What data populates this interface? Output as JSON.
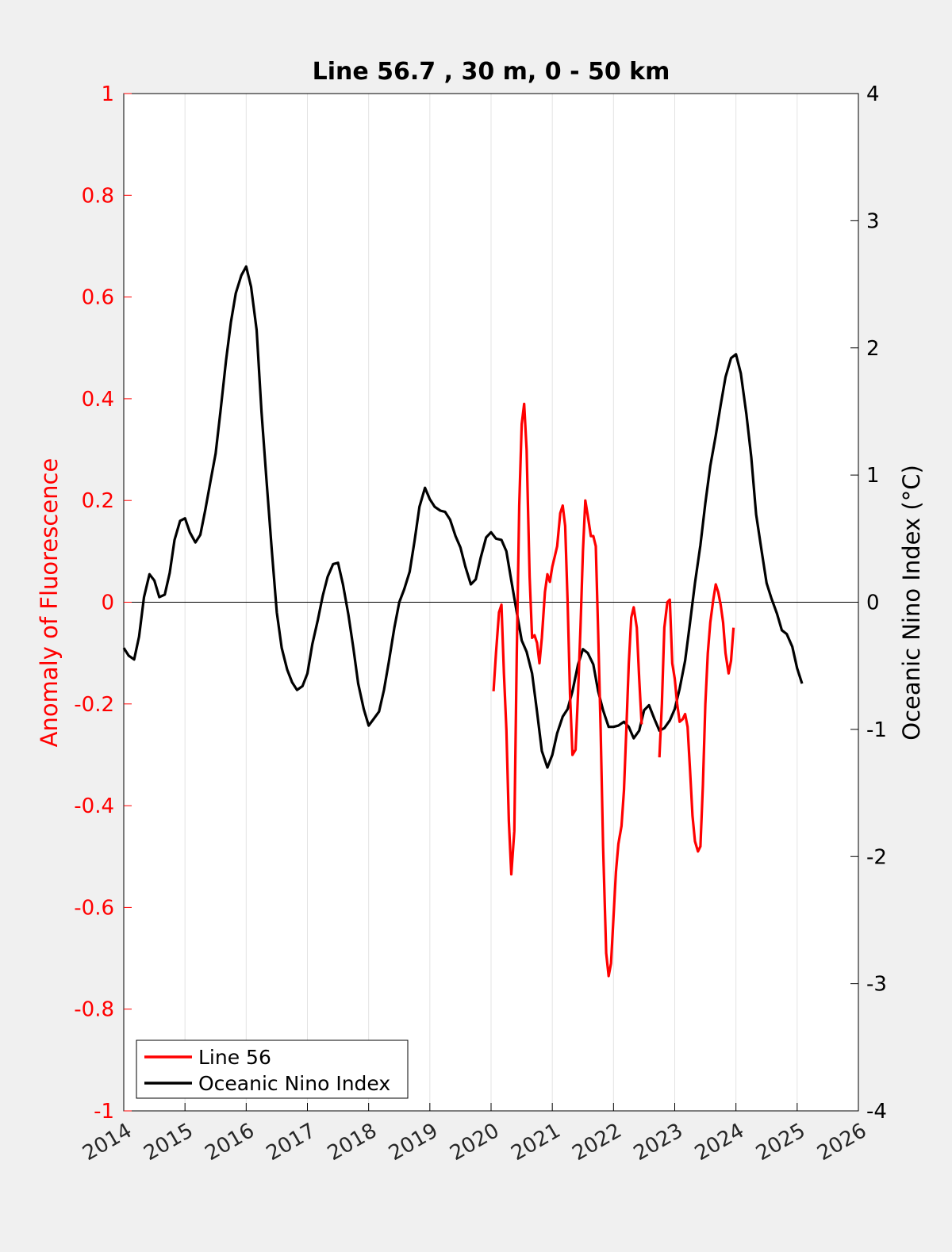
{
  "chart_data": {
    "type": "line",
    "title": "Line 56.7 , 30 m, 0 - 50 km",
    "xlabel": "",
    "ylabel_left": "Anomaly of Fluorescence",
    "ylabel_right": "Oceanic Nino Index (°C)",
    "xlim": [
      2014,
      2026
    ],
    "ylim_left": [
      -1,
      1
    ],
    "ylim_right": [
      -4,
      4
    ],
    "x_ticks": [
      "2014",
      "2015",
      "2016",
      "2017",
      "2018",
      "2019",
      "2020",
      "2021",
      "2022",
      "2023",
      "2024",
      "2025",
      "2026"
    ],
    "y_ticks_left": [
      "1",
      "0.8",
      "0.6",
      "0.4",
      "0.2",
      "0",
      "-0.2",
      "-0.4",
      "-0.6",
      "-0.8",
      "-1"
    ],
    "y_ticks_right": [
      "4",
      "3",
      "2",
      "1",
      "0",
      "-1",
      "-2",
      "-3",
      "-4"
    ],
    "grid": "vertical",
    "zero_line": true,
    "legend_position": "bottom-left",
    "colors": {
      "line56": "#ff0000",
      "oni": "#000000",
      "left_axis": "#ff0000",
      "right_axis": "#000000"
    },
    "series": [
      {
        "name": "Line 56",
        "axis": "left",
        "color": "#ff0000",
        "segments": [
          [
            [
              2020.04,
              -0.175
            ],
            [
              2020.08,
              -0.1
            ],
            [
              2020.13,
              -0.02
            ],
            [
              2020.17,
              -0.005
            ],
            [
              2020.21,
              -0.14
            ],
            [
              2020.25,
              -0.25
            ],
            [
              2020.29,
              -0.43
            ],
            [
              2020.33,
              -0.535
            ],
            [
              2020.38,
              -0.45
            ],
            [
              2020.42,
              -0.1
            ],
            [
              2020.46,
              0.19
            ],
            [
              2020.5,
              0.35
            ],
            [
              2020.54,
              0.39
            ],
            [
              2020.58,
              0.3
            ],
            [
              2020.63,
              0.05
            ],
            [
              2020.67,
              -0.07
            ],
            [
              2020.71,
              -0.065
            ],
            [
              2020.75,
              -0.08
            ],
            [
              2020.79,
              -0.12
            ],
            [
              2020.83,
              -0.07
            ],
            [
              2020.88,
              0.02
            ],
            [
              2020.92,
              0.055
            ],
            [
              2020.96,
              0.04
            ],
            [
              2021.0,
              0.07
            ],
            [
              2021.04,
              0.09
            ],
            [
              2021.08,
              0.11
            ],
            [
              2021.13,
              0.175
            ],
            [
              2021.17,
              0.19
            ],
            [
              2021.21,
              0.15
            ],
            [
              2021.25,
              0.0
            ],
            [
              2021.29,
              -0.18
            ],
            [
              2021.33,
              -0.3
            ],
            [
              2021.38,
              -0.29
            ],
            [
              2021.42,
              -0.18
            ],
            [
              2021.46,
              -0.05
            ],
            [
              2021.5,
              0.1
            ],
            [
              2021.54,
              0.2
            ],
            [
              2021.58,
              0.17
            ],
            [
              2021.63,
              0.13
            ],
            [
              2021.67,
              0.13
            ],
            [
              2021.71,
              0.11
            ],
            [
              2021.75,
              -0.06
            ],
            [
              2021.79,
              -0.25
            ],
            [
              2021.83,
              -0.48
            ],
            [
              2021.88,
              -0.69
            ],
            [
              2021.92,
              -0.735
            ],
            [
              2021.96,
              -0.71
            ],
            [
              2022.0,
              -0.62
            ],
            [
              2022.04,
              -0.53
            ],
            [
              2022.08,
              -0.475
            ],
            [
              2022.13,
              -0.44
            ],
            [
              2022.17,
              -0.37
            ],
            [
              2022.21,
              -0.25
            ],
            [
              2022.25,
              -0.12
            ],
            [
              2022.29,
              -0.03
            ],
            [
              2022.33,
              -0.01
            ],
            [
              2022.38,
              -0.05
            ],
            [
              2022.42,
              -0.15
            ],
            [
              2022.46,
              -0.24
            ]
          ],
          [
            [
              2022.75,
              -0.305
            ],
            [
              2022.79,
              -0.2
            ],
            [
              2022.83,
              -0.05
            ],
            [
              2022.88,
              0.0
            ],
            [
              2022.92,
              0.005
            ],
            [
              2022.96,
              -0.12
            ],
            [
              2023.0,
              -0.15
            ],
            [
              2023.04,
              -0.2
            ],
            [
              2023.08,
              -0.235
            ],
            [
              2023.13,
              -0.23
            ],
            [
              2023.17,
              -0.22
            ],
            [
              2023.21,
              -0.245
            ],
            [
              2023.25,
              -0.33
            ],
            [
              2023.29,
              -0.42
            ],
            [
              2023.33,
              -0.47
            ],
            [
              2023.38,
              -0.49
            ],
            [
              2023.42,
              -0.48
            ],
            [
              2023.46,
              -0.36
            ],
            [
              2023.5,
              -0.2
            ],
            [
              2023.54,
              -0.1
            ],
            [
              2023.58,
              -0.04
            ],
            [
              2023.63,
              0.005
            ],
            [
              2023.67,
              0.035
            ],
            [
              2023.71,
              0.02
            ],
            [
              2023.75,
              -0.005
            ],
            [
              2023.79,
              -0.04
            ],
            [
              2023.83,
              -0.1
            ],
            [
              2023.88,
              -0.14
            ],
            [
              2023.92,
              -0.115
            ],
            [
              2023.96,
              -0.05
            ]
          ]
        ]
      },
      {
        "name": "Oceanic Nino Index",
        "axis": "right",
        "color": "#000000",
        "points": [
          [
            2014.0,
            -0.36
          ],
          [
            2014.08,
            -0.42
          ],
          [
            2014.17,
            -0.45
          ],
          [
            2014.25,
            -0.27
          ],
          [
            2014.33,
            0.04
          ],
          [
            2014.42,
            0.22
          ],
          [
            2014.5,
            0.17
          ],
          [
            2014.58,
            0.04
          ],
          [
            2014.67,
            0.06
          ],
          [
            2014.75,
            0.23
          ],
          [
            2014.83,
            0.49
          ],
          [
            2014.92,
            0.64
          ],
          [
            2015.0,
            0.66
          ],
          [
            2015.08,
            0.55
          ],
          [
            2015.17,
            0.47
          ],
          [
            2015.25,
            0.53
          ],
          [
            2015.33,
            0.72
          ],
          [
            2015.42,
            0.96
          ],
          [
            2015.5,
            1.17
          ],
          [
            2015.58,
            1.5
          ],
          [
            2015.67,
            1.9
          ],
          [
            2015.75,
            2.2
          ],
          [
            2015.83,
            2.43
          ],
          [
            2015.92,
            2.57
          ],
          [
            2016.0,
            2.64
          ],
          [
            2016.08,
            2.48
          ],
          [
            2016.17,
            2.14
          ],
          [
            2016.25,
            1.5
          ],
          [
            2016.33,
            0.97
          ],
          [
            2016.42,
            0.4
          ],
          [
            2016.5,
            -0.08
          ],
          [
            2016.58,
            -0.36
          ],
          [
            2016.67,
            -0.53
          ],
          [
            2016.75,
            -0.63
          ],
          [
            2016.83,
            -0.69
          ],
          [
            2016.92,
            -0.66
          ],
          [
            2017.0,
            -0.56
          ],
          [
            2017.08,
            -0.33
          ],
          [
            2017.17,
            -0.14
          ],
          [
            2017.25,
            0.05
          ],
          [
            2017.33,
            0.2
          ],
          [
            2017.42,
            0.3
          ],
          [
            2017.5,
            0.31
          ],
          [
            2017.58,
            0.14
          ],
          [
            2017.67,
            -0.1
          ],
          [
            2017.75,
            -0.36
          ],
          [
            2017.83,
            -0.64
          ],
          [
            2017.92,
            -0.84
          ],
          [
            2018.0,
            -0.97
          ],
          [
            2018.08,
            -0.92
          ],
          [
            2018.17,
            -0.86
          ],
          [
            2018.25,
            -0.69
          ],
          [
            2018.33,
            -0.47
          ],
          [
            2018.42,
            -0.2
          ],
          [
            2018.5,
            0.0
          ],
          [
            2018.58,
            0.1
          ],
          [
            2018.67,
            0.24
          ],
          [
            2018.75,
            0.48
          ],
          [
            2018.83,
            0.75
          ],
          [
            2018.92,
            0.9
          ],
          [
            2019.0,
            0.81
          ],
          [
            2019.08,
            0.75
          ],
          [
            2019.17,
            0.72
          ],
          [
            2019.25,
            0.71
          ],
          [
            2019.33,
            0.65
          ],
          [
            2019.42,
            0.52
          ],
          [
            2019.5,
            0.43
          ],
          [
            2019.58,
            0.28
          ],
          [
            2019.67,
            0.14
          ],
          [
            2019.75,
            0.18
          ],
          [
            2019.83,
            0.35
          ],
          [
            2019.92,
            0.51
          ],
          [
            2020.0,
            0.55
          ],
          [
            2020.08,
            0.5
          ],
          [
            2020.17,
            0.49
          ],
          [
            2020.25,
            0.4
          ],
          [
            2020.33,
            0.17
          ],
          [
            2020.42,
            -0.08
          ],
          [
            2020.5,
            -0.3
          ],
          [
            2020.58,
            -0.39
          ],
          [
            2020.67,
            -0.56
          ],
          [
            2020.75,
            -0.86
          ],
          [
            2020.83,
            -1.17
          ],
          [
            2020.92,
            -1.3
          ],
          [
            2021.0,
            -1.2
          ],
          [
            2021.08,
            -1.03
          ],
          [
            2021.17,
            -0.9
          ],
          [
            2021.25,
            -0.84
          ],
          [
            2021.33,
            -0.7
          ],
          [
            2021.42,
            -0.49
          ],
          [
            2021.5,
            -0.37
          ],
          [
            2021.58,
            -0.4
          ],
          [
            2021.67,
            -0.49
          ],
          [
            2021.75,
            -0.7
          ],
          [
            2021.83,
            -0.85
          ],
          [
            2021.92,
            -0.98
          ],
          [
            2022.0,
            -0.98
          ],
          [
            2022.08,
            -0.97
          ],
          [
            2022.17,
            -0.94
          ],
          [
            2022.25,
            -0.98
          ],
          [
            2022.33,
            -1.07
          ],
          [
            2022.42,
            -1.01
          ],
          [
            2022.5,
            -0.85
          ],
          [
            2022.58,
            -0.81
          ],
          [
            2022.67,
            -0.92
          ],
          [
            2022.75,
            -1.01
          ],
          [
            2022.83,
            -0.99
          ],
          [
            2022.92,
            -0.93
          ],
          [
            2023.0,
            -0.84
          ],
          [
            2023.08,
            -0.68
          ],
          [
            2023.17,
            -0.46
          ],
          [
            2023.25,
            -0.16
          ],
          [
            2023.33,
            0.15
          ],
          [
            2023.42,
            0.45
          ],
          [
            2023.5,
            0.78
          ],
          [
            2023.58,
            1.07
          ],
          [
            2023.67,
            1.31
          ],
          [
            2023.75,
            1.55
          ],
          [
            2023.83,
            1.77
          ],
          [
            2023.92,
            1.92
          ],
          [
            2024.0,
            1.95
          ],
          [
            2024.08,
            1.8
          ],
          [
            2024.17,
            1.48
          ],
          [
            2024.25,
            1.14
          ],
          [
            2024.33,
            0.69
          ],
          [
            2024.42,
            0.4
          ],
          [
            2024.5,
            0.15
          ],
          [
            2024.58,
            0.03
          ],
          [
            2024.67,
            -0.09
          ],
          [
            2024.75,
            -0.22
          ],
          [
            2024.83,
            -0.25
          ],
          [
            2024.92,
            -0.35
          ],
          [
            2025.0,
            -0.52
          ],
          [
            2025.08,
            -0.64
          ]
        ]
      }
    ]
  }
}
